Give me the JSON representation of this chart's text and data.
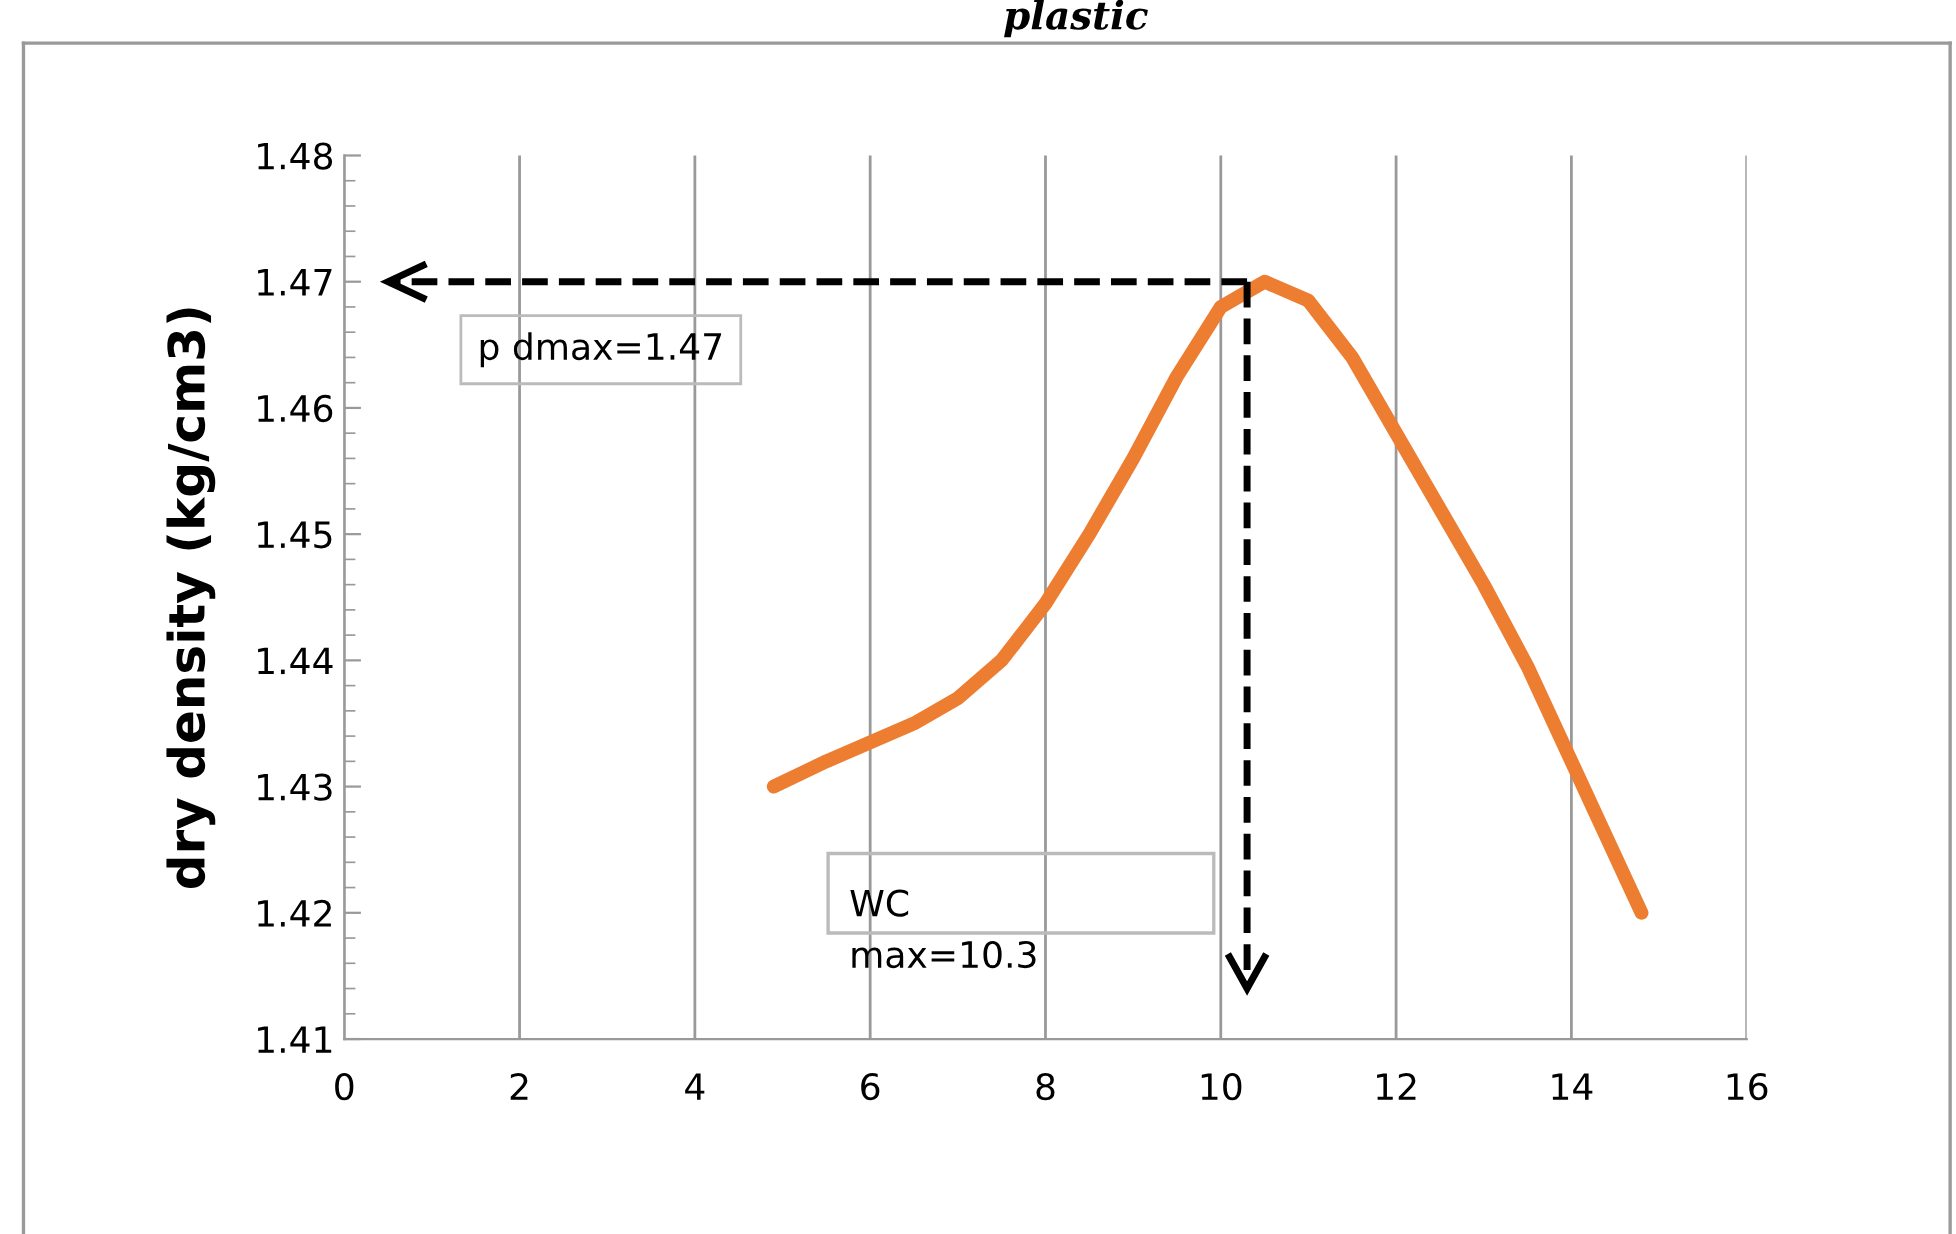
{
  "chart_data": {
    "type": "line",
    "title": "plastic",
    "ylabel": "dry density (kg/cm3)",
    "x": [
      4.9,
      5.5,
      6,
      6.5,
      7,
      7.5,
      8,
      8.5,
      9,
      9.5,
      10,
      10.5,
      11,
      11.5,
      12,
      12.5,
      13,
      13.5,
      14,
      14.4,
      14.8
    ],
    "series": [
      {
        "color": "#ed7d31",
        "values": [
          1.43,
          1.432,
          1.4335,
          1.435,
          1.437,
          1.44,
          1.4445,
          1.45,
          1.456,
          1.4625,
          1.468,
          1.47,
          1.4685,
          1.464,
          1.458,
          1.452,
          1.446,
          1.4395,
          1.432,
          1.426,
          1.42
        ]
      }
    ],
    "xlim": [
      0,
      16
    ],
    "xticks": [
      0,
      2,
      4,
      6,
      8,
      10,
      12,
      14,
      16
    ],
    "ylim": [
      1.41,
      1.48
    ],
    "yticks": [
      1.41,
      1.42,
      1.43,
      1.44,
      1.45,
      1.46,
      1.47,
      1.48
    ],
    "grid": "x",
    "marker": "none",
    "line_style": "solid",
    "ref_lines": [
      {
        "axis": "y",
        "value": 1.47,
        "line_style": "dashed",
        "color": "#000000"
      },
      {
        "axis": "x",
        "value": 10.3,
        "line_style": "dashed",
        "color": "#000000"
      }
    ],
    "annotations": [
      "p dmax=1.47",
      "WC\nmax=10.3"
    ]
  }
}
